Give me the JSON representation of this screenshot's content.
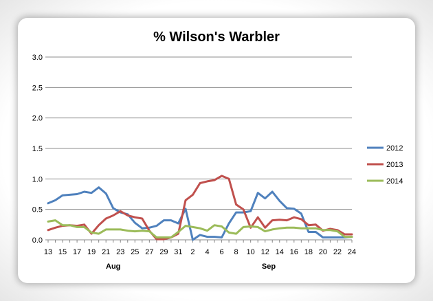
{
  "chart_data": {
    "type": "line",
    "title": "% Wilson's Warbler",
    "xlabel": "",
    "ylabel": "",
    "ylim": [
      0,
      3.0
    ],
    "y_ticks": [
      "0.0",
      "0.5",
      "1.0",
      "1.5",
      "2.0",
      "2.5",
      "3.0"
    ],
    "x_tick_labels": [
      "13",
      "15",
      "17",
      "19",
      "21",
      "23",
      "25",
      "27",
      "29",
      "31",
      "2",
      "4",
      "6",
      "8",
      "10",
      "12",
      "14",
      "16",
      "18",
      "20",
      "22",
      "24"
    ],
    "month_labels": [
      "Aug",
      "Sep"
    ],
    "grid": "horizontal",
    "legend_position": "right",
    "x": [
      "Aug 13",
      "Aug 14",
      "Aug 15",
      "Aug 16",
      "Aug 17",
      "Aug 18",
      "Aug 19",
      "Aug 20",
      "Aug 21",
      "Aug 22",
      "Aug 23",
      "Aug 24",
      "Aug 25",
      "Aug 26",
      "Aug 27",
      "Aug 28",
      "Aug 29",
      "Aug 30",
      "Aug 31",
      "Sep 1",
      "Sep 2",
      "Sep 3",
      "Sep 4",
      "Sep 5",
      "Sep 6",
      "Sep 7",
      "Sep 8",
      "Sep 9",
      "Sep 10",
      "Sep 11",
      "Sep 12",
      "Sep 13",
      "Sep 14",
      "Sep 15",
      "Sep 16",
      "Sep 17",
      "Sep 18",
      "Sep 19",
      "Sep 20",
      "Sep 21",
      "Sep 22",
      "Sep 23",
      "Sep 24"
    ],
    "series": [
      {
        "name": "2012",
        "color": "#4f81bd",
        "values": [
          0.6,
          0.65,
          0.73,
          0.74,
          0.75,
          0.79,
          0.77,
          0.86,
          0.76,
          0.52,
          0.45,
          0.42,
          0.28,
          0.19,
          0.2,
          0.23,
          0.32,
          0.32,
          0.27,
          0.51,
          0.0,
          0.08,
          0.05,
          0.05,
          0.04,
          0.27,
          0.45,
          0.45,
          0.47,
          0.77,
          0.68,
          0.79,
          0.64,
          0.52,
          0.51,
          0.43,
          0.13,
          0.13,
          0.04,
          0.04,
          0.04,
          0.04,
          0.05
        ]
      },
      {
        "name": "2013",
        "color": "#c0504d",
        "values": [
          0.16,
          0.2,
          0.23,
          0.24,
          0.23,
          0.25,
          0.1,
          0.24,
          0.35,
          0.4,
          0.47,
          0.4,
          0.37,
          0.35,
          0.15,
          0.01,
          0.01,
          0.04,
          0.1,
          0.65,
          0.74,
          0.93,
          0.96,
          0.98,
          1.05,
          1.0,
          0.58,
          0.5,
          0.2,
          0.37,
          0.2,
          0.32,
          0.33,
          0.32,
          0.37,
          0.34,
          0.24,
          0.25,
          0.15,
          0.18,
          0.16,
          0.09,
          0.09
        ]
      },
      {
        "name": "2014",
        "color": "#9bbb59",
        "values": [
          0.3,
          0.32,
          0.24,
          0.24,
          0.21,
          0.21,
          0.12,
          0.1,
          0.17,
          0.17,
          0.17,
          0.15,
          0.14,
          0.15,
          0.14,
          0.04,
          0.04,
          0.04,
          0.13,
          0.23,
          0.21,
          0.19,
          0.15,
          0.24,
          0.22,
          0.12,
          0.1,
          0.21,
          0.22,
          0.21,
          0.14,
          0.17,
          0.19,
          0.2,
          0.2,
          0.19,
          0.19,
          0.19,
          0.16,
          0.16,
          0.14,
          0.05,
          0.05
        ]
      }
    ]
  }
}
